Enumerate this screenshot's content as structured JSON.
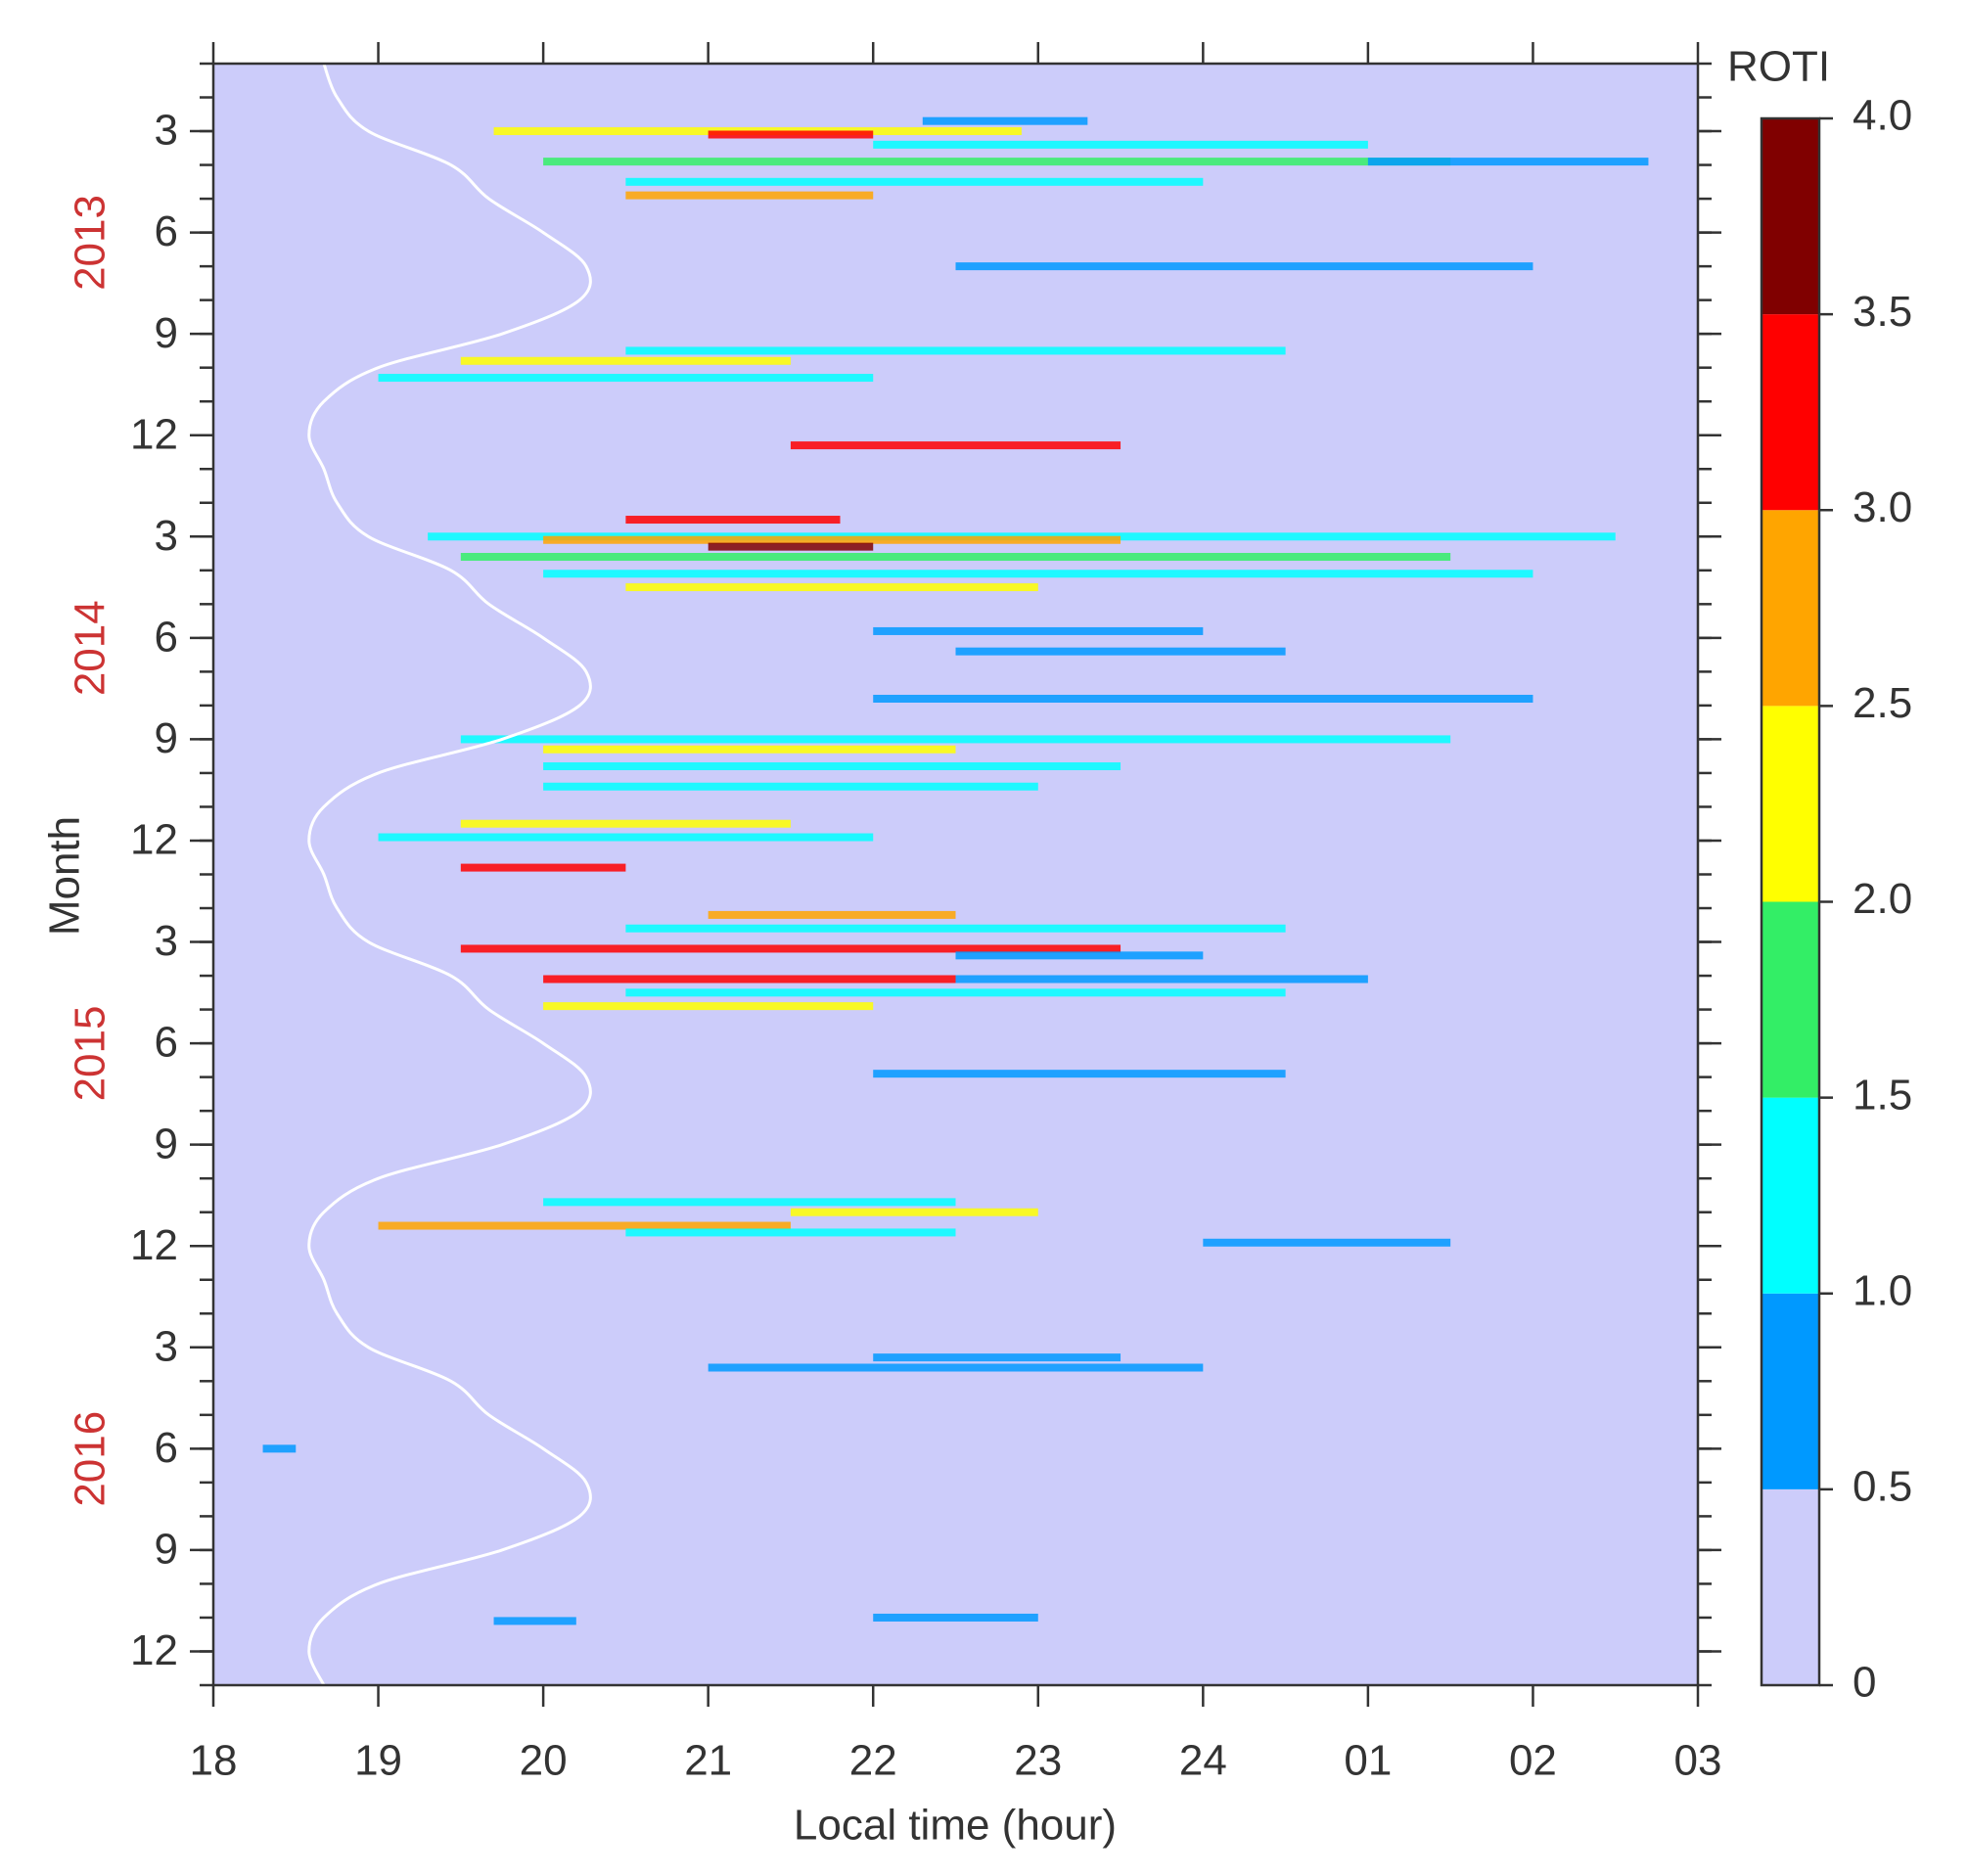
{
  "chart_data": {
    "type": "heatmap",
    "xlabel": "Local time (hour)",
    "ylabel": "Month",
    "xlim": [
      18,
      27
    ],
    "xticks": [
      18,
      19,
      20,
      21,
      22,
      23,
      24,
      {
        "value": 25,
        "label": "01"
      },
      {
        "value": 26,
        "label": "02"
      },
      {
        "value": 27,
        "label": "03"
      }
    ],
    "ylim": [
      1,
      49
    ],
    "yticks": [
      3,
      6,
      9,
      12,
      {
        "value": 15,
        "label": "3"
      },
      {
        "value": 18,
        "label": "6"
      },
      {
        "value": 21,
        "label": "9"
      },
      {
        "value": 24,
        "label": "12"
      },
      {
        "value": 27,
        "label": "3"
      },
      {
        "value": 30,
        "label": "6"
      },
      {
        "value": 33,
        "label": "9"
      },
      {
        "value": 36,
        "label": "12"
      },
      {
        "value": 39,
        "label": "3"
      },
      {
        "value": 42,
        "label": "6"
      },
      {
        "value": 45,
        "label": "9"
      },
      {
        "value": 48,
        "label": "12"
      }
    ],
    "yminorticks": [
      1,
      2,
      3,
      4,
      5,
      6,
      7,
      8,
      9,
      10,
      11,
      12,
      13,
      14,
      15,
      16,
      17,
      18,
      19,
      20,
      21,
      22,
      23,
      24,
      25,
      26,
      27,
      28,
      29,
      30,
      31,
      32,
      33,
      34,
      35,
      36,
      37,
      38,
      39,
      40,
      41,
      42,
      43,
      44,
      45,
      46,
      47,
      48,
      49
    ],
    "years": [
      {
        "text": "2013",
        "month": 6.3
      },
      {
        "text": "2014",
        "month": 18.3
      },
      {
        "text": "2015",
        "month": 30.3
      },
      {
        "text": "2016",
        "month": 42.3
      }
    ],
    "year_color": "#cc3333",
    "colorbar": {
      "label": "ROTI",
      "ticks": [
        0,
        0.5,
        {
          "value": 1,
          "label": "1.0"
        },
        1.5,
        {
          "value": 2,
          "label": "2.0"
        },
        2.5,
        {
          "value": 3,
          "label": "3.0"
        },
        3.5,
        {
          "value": 4,
          "label": "4.0"
        }
      ],
      "colors": [
        "#ccccfa",
        "#0099ff",
        "#00ffff",
        "#33ee66",
        "#ffff00",
        "#ffa500",
        "#ff0000",
        "#800000"
      ]
    },
    "streaks": {
      "month": [
        2.7,
        3.0,
        3.1,
        3.4,
        3.9,
        3.9,
        4.5,
        4.9,
        7.0,
        9.5,
        9.8,
        10.3,
        12.3,
        14.5,
        15.0,
        15.1,
        15.3,
        15.6,
        16.1,
        16.5,
        17.8,
        18.4,
        19.8,
        21.0,
        21.3,
        21.8,
        22.4,
        23.5,
        23.9,
        24.8,
        26.2,
        26.6,
        27.2,
        27.4,
        28.1,
        28.1,
        28.5,
        28.9,
        30.9,
        34.7,
        35.0,
        35.4,
        35.6,
        35.9,
        39.3,
        39.6,
        42.0,
        47.0,
        47.1
      ],
      "start": [
        22.3,
        19.7,
        21.0,
        22.0,
        20.0,
        25.0,
        20.5,
        20.5,
        22.5,
        20.5,
        19.5,
        19.0,
        21.5,
        20.5,
        19.3,
        20.0,
        21.0,
        19.5,
        20.0,
        20.5,
        22.0,
        22.5,
        22.0,
        19.5,
        20.0,
        20.0,
        20.0,
        19.5,
        19.0,
        19.5,
        21.0,
        20.5,
        19.5,
        22.5,
        20.0,
        22.5,
        20.5,
        20.0,
        22.0,
        20.0,
        21.5,
        19.0,
        20.5,
        24.0,
        22.0,
        21.0,
        18.3,
        22.0,
        19.7
      ],
      "end": [
        23.3,
        22.9,
        22.0,
        25.0,
        25.5,
        26.7,
        24.0,
        22.0,
        26.0,
        24.5,
        21.5,
        22.0,
        23.5,
        21.8,
        26.5,
        23.5,
        22.0,
        25.5,
        26.0,
        23.0,
        24.0,
        24.5,
        26.0,
        25.5,
        22.5,
        23.5,
        23.0,
        21.5,
        22.0,
        20.5,
        22.5,
        24.5,
        23.5,
        24.0,
        22.5,
        25.0,
        24.5,
        22.0,
        24.5,
        22.5,
        23.0,
        21.5,
        22.5,
        25.5,
        23.5,
        24.0,
        18.5,
        23.0,
        20.2
      ],
      "roti": [
        0.8,
        2.2,
        3.2,
        1.2,
        1.8,
        0.8,
        1.2,
        2.6,
        0.8,
        1.2,
        2.2,
        1.0,
        3.1,
        3.2,
        1.2,
        2.6,
        3.6,
        1.8,
        1.0,
        2.4,
        0.7,
        0.8,
        0.7,
        1.2,
        2.2,
        1.4,
        1.0,
        2.4,
        1.2,
        3.2,
        2.8,
        1.4,
        3.0,
        0.9,
        3.1,
        0.9,
        1.3,
        2.2,
        0.7,
        1.2,
        2.2,
        2.6,
        1.4,
        0.7,
        0.8,
        0.7,
        0.7,
        0.8,
        0.7
      ]
    },
    "curve": {
      "color": "#ffffff",
      "x": [
        1,
        2,
        3,
        4,
        5,
        6,
        7,
        8,
        9,
        10,
        11,
        12,
        13,
        14,
        15,
        16,
        17,
        18,
        19,
        20,
        21,
        22,
        23,
        24,
        25,
        26,
        27,
        28,
        29,
        30,
        31,
        32,
        33,
        34,
        35,
        36,
        37,
        38,
        39,
        40,
        41,
        42,
        43,
        44,
        45,
        46,
        47,
        48,
        49
      ],
      "values": [
        18.67,
        18.75,
        18.94,
        19.44,
        19.67,
        20.0,
        20.26,
        20.22,
        19.75,
        19.0,
        18.67,
        18.58,
        18.67,
        18.75,
        18.94,
        19.44,
        19.67,
        20.0,
        20.26,
        20.22,
        19.75,
        19.0,
        18.67,
        18.58,
        18.67,
        18.75,
        18.94,
        19.44,
        19.67,
        20.0,
        20.26,
        20.22,
        19.75,
        19.0,
        18.67,
        18.58,
        18.67,
        18.75,
        18.94,
        19.44,
        19.67,
        20.0,
        20.26,
        20.22,
        19.75,
        19.0,
        18.67,
        18.58,
        18.67
      ]
    }
  }
}
